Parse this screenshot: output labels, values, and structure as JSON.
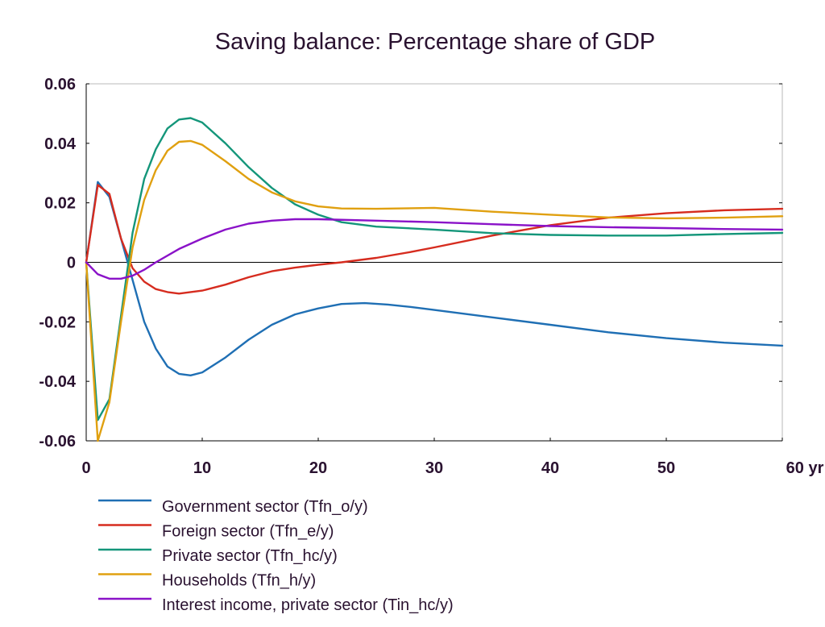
{
  "chart_data": {
    "type": "line",
    "title": "Saving balance: Percentage share of GDP",
    "x_unit": "yr",
    "xlim": [
      0,
      60
    ],
    "ylim": [
      -0.06,
      0.06
    ],
    "x_ticks": [
      0,
      10,
      20,
      30,
      40,
      50,
      60
    ],
    "x_tick_labels": [
      "0",
      "10",
      "20",
      "30",
      "40",
      "50",
      "60 yr"
    ],
    "y_ticks": [
      0.06,
      0.04,
      0.02,
      0,
      -0.02,
      -0.04,
      -0.06
    ],
    "y_tick_labels": [
      "0.06",
      "0.04",
      "0.02",
      "0",
      "-0.02",
      "-0.04",
      "-0.06"
    ],
    "grid": false,
    "legend_position": "bottom",
    "series": [
      {
        "name": "Government sector (Tfn_o/y)",
        "color": "#1f6fb4",
        "points": [
          [
            0,
            0
          ],
          [
            1,
            0.027
          ],
          [
            2,
            0.022
          ],
          [
            3,
            0.008
          ],
          [
            4,
            -0.006
          ],
          [
            5,
            -0.02
          ],
          [
            6,
            -0.029
          ],
          [
            7,
            -0.035
          ],
          [
            8,
            -0.0375
          ],
          [
            9,
            -0.038
          ],
          [
            10,
            -0.037
          ],
          [
            12,
            -0.032
          ],
          [
            14,
            -0.026
          ],
          [
            16,
            -0.021
          ],
          [
            18,
            -0.0175
          ],
          [
            20,
            -0.0155
          ],
          [
            22,
            -0.014
          ],
          [
            24,
            -0.0137
          ],
          [
            26,
            -0.0142
          ],
          [
            28,
            -0.015
          ],
          [
            30,
            -0.016
          ],
          [
            35,
            -0.0185
          ],
          [
            40,
            -0.021
          ],
          [
            45,
            -0.0235
          ],
          [
            50,
            -0.0255
          ],
          [
            55,
            -0.027
          ],
          [
            60,
            -0.028
          ]
        ]
      },
      {
        "name": "Foreign sector (Tfn_e/y)",
        "color": "#d62c1f",
        "points": [
          [
            0,
            0
          ],
          [
            1,
            0.026
          ],
          [
            2,
            0.023
          ],
          [
            3,
            0.008
          ],
          [
            4,
            -0.002
          ],
          [
            5,
            -0.0065
          ],
          [
            6,
            -0.009
          ],
          [
            7,
            -0.01
          ],
          [
            8,
            -0.0105
          ],
          [
            10,
            -0.0095
          ],
          [
            12,
            -0.0075
          ],
          [
            14,
            -0.005
          ],
          [
            16,
            -0.003
          ],
          [
            18,
            -0.0018
          ],
          [
            20,
            -0.0008
          ],
          [
            22,
            0.0
          ],
          [
            25,
            0.0015
          ],
          [
            28,
            0.0035
          ],
          [
            30,
            0.005
          ],
          [
            35,
            0.009
          ],
          [
            40,
            0.0125
          ],
          [
            45,
            0.015
          ],
          [
            50,
            0.0165
          ],
          [
            55,
            0.0175
          ],
          [
            60,
            0.018
          ]
        ]
      },
      {
        "name": "Private sector (Tfn_hc/y)",
        "color": "#14967a",
        "points": [
          [
            0,
            0
          ],
          [
            1,
            -0.053
          ],
          [
            2,
            -0.046
          ],
          [
            3,
            -0.018
          ],
          [
            4,
            0.01
          ],
          [
            5,
            0.028
          ],
          [
            6,
            0.038
          ],
          [
            7,
            0.045
          ],
          [
            8,
            0.048
          ],
          [
            9,
            0.0485
          ],
          [
            10,
            0.047
          ],
          [
            12,
            0.04
          ],
          [
            14,
            0.032
          ],
          [
            16,
            0.025
          ],
          [
            18,
            0.0195
          ],
          [
            20,
            0.016
          ],
          [
            22,
            0.0135
          ],
          [
            25,
            0.012
          ],
          [
            30,
            0.011
          ],
          [
            35,
            0.0098
          ],
          [
            40,
            0.0092
          ],
          [
            45,
            0.009
          ],
          [
            50,
            0.009
          ],
          [
            55,
            0.0095
          ],
          [
            60,
            0.0099
          ]
        ]
      },
      {
        "name": "Households (Tfn_h/y)",
        "color": "#e0a010",
        "points": [
          [
            0,
            0
          ],
          [
            1,
            -0.06
          ],
          [
            2,
            -0.047
          ],
          [
            3,
            -0.02
          ],
          [
            4,
            0.005
          ],
          [
            5,
            0.021
          ],
          [
            6,
            0.031
          ],
          [
            7,
            0.0375
          ],
          [
            8,
            0.0405
          ],
          [
            9,
            0.0408
          ],
          [
            10,
            0.0395
          ],
          [
            12,
            0.034
          ],
          [
            14,
            0.028
          ],
          [
            16,
            0.0235
          ],
          [
            18,
            0.0205
          ],
          [
            20,
            0.0188
          ],
          [
            22,
            0.0181
          ],
          [
            25,
            0.018
          ],
          [
            30,
            0.0183
          ],
          [
            35,
            0.017
          ],
          [
            40,
            0.016
          ],
          [
            45,
            0.0151
          ],
          [
            50,
            0.0148
          ],
          [
            55,
            0.015
          ],
          [
            60,
            0.0155
          ]
        ]
      },
      {
        "name": "Interest income, private sector (Tin_hc/y)",
        "color": "#8a12c8",
        "points": [
          [
            0,
            0
          ],
          [
            1,
            -0.004
          ],
          [
            2,
            -0.0055
          ],
          [
            3,
            -0.0055
          ],
          [
            4,
            -0.0045
          ],
          [
            5,
            -0.0025
          ],
          [
            6,
            0.0
          ],
          [
            8,
            0.0045
          ],
          [
            10,
            0.008
          ],
          [
            12,
            0.011
          ],
          [
            14,
            0.013
          ],
          [
            16,
            0.014
          ],
          [
            18,
            0.0145
          ],
          [
            20,
            0.0145
          ],
          [
            25,
            0.014
          ],
          [
            30,
            0.0135
          ],
          [
            35,
            0.0128
          ],
          [
            40,
            0.0122
          ],
          [
            45,
            0.0118
          ],
          [
            50,
            0.0115
          ],
          [
            55,
            0.0112
          ],
          [
            60,
            0.011
          ]
        ]
      }
    ]
  }
}
